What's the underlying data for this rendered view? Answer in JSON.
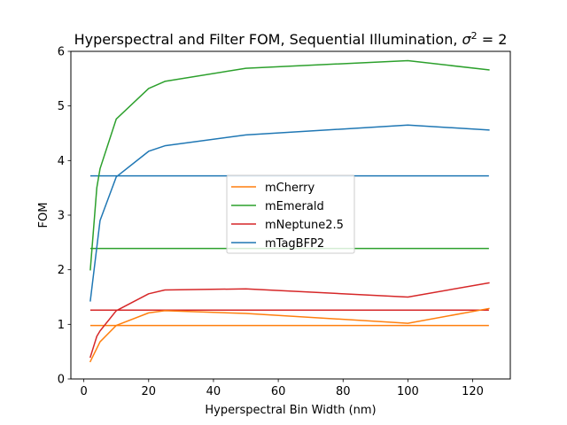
{
  "chart_data": {
    "type": "line",
    "title": "Hyperspectral and Filter FOM, Sequential Illumination, ",
    "title_math": "σ",
    "title_sup": "2",
    "title_tail": " = 2",
    "xlabel": "Hyperspectral Bin Width (nm)",
    "ylabel": "FOM",
    "xlim": [
      -4,
      131.6
    ],
    "ylim": [
      0,
      6
    ],
    "xticks": [
      "0",
      "20",
      "40",
      "60",
      "80",
      "100",
      "120"
    ],
    "yticks": [
      "0",
      "1",
      "2",
      "3",
      "4",
      "5",
      "6"
    ],
    "grid": false,
    "legend_position": "center",
    "series": [
      {
        "name": "mCherry",
        "color": "#ff7f0e",
        "x": [
          2,
          5,
          10,
          20,
          25,
          50,
          100,
          125
        ],
        "y": [
          0.32,
          0.68,
          0.98,
          1.21,
          1.25,
          1.2,
          1.02,
          1.29
        ],
        "filter_value": 0.98
      },
      {
        "name": "mEmerald",
        "color": "#2ca02c",
        "x": [
          2,
          4,
          5,
          10,
          20,
          25,
          50,
          100,
          125
        ],
        "y": [
          2.0,
          3.5,
          3.85,
          4.76,
          5.32,
          5.45,
          5.69,
          5.83,
          5.66
        ],
        "filter_value": 2.39
      },
      {
        "name": "mNeptune2.5",
        "color": "#d62728",
        "x": [
          2,
          4,
          5,
          10,
          20,
          25,
          50,
          100,
          125
        ],
        "y": [
          0.4,
          0.78,
          0.88,
          1.25,
          1.56,
          1.63,
          1.65,
          1.5,
          1.76
        ],
        "filter_value": 1.26
      },
      {
        "name": "mTagBFP2",
        "color": "#1f77b4",
        "x": [
          2,
          5,
          10,
          20,
          25,
          50,
          100,
          125
        ],
        "y": [
          1.43,
          2.9,
          3.7,
          4.17,
          4.27,
          4.47,
          4.65,
          4.56
        ],
        "filter_value": 3.72
      }
    ]
  }
}
